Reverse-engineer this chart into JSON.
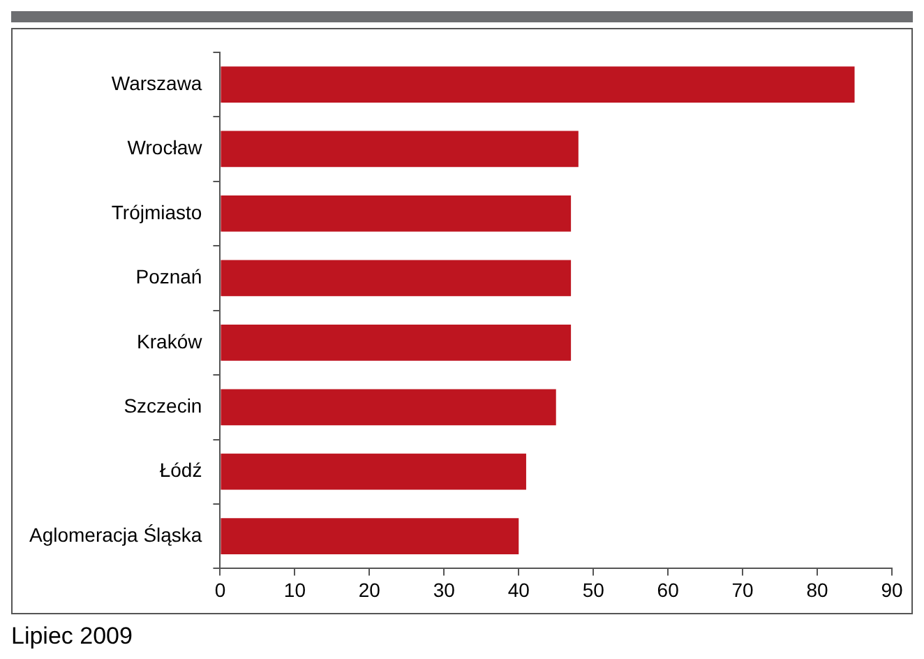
{
  "chart_data": {
    "type": "bar",
    "orientation": "horizontal",
    "categories": [
      "Warszawa",
      "Wrocław",
      "Trójmiasto",
      "Poznań",
      "Kraków",
      "Szczecin",
      "Łódź",
      "Aglomeracja Śląska"
    ],
    "values": [
      85,
      48,
      47,
      47,
      47,
      45,
      41,
      40
    ],
    "color": "#be1520",
    "xlim": [
      0,
      90
    ],
    "xticks": [
      0,
      10,
      20,
      30,
      40,
      50,
      60,
      70,
      80,
      90
    ],
    "grid": false,
    "legend": false,
    "annotations": [
      "Lipiec 2009"
    ]
  }
}
